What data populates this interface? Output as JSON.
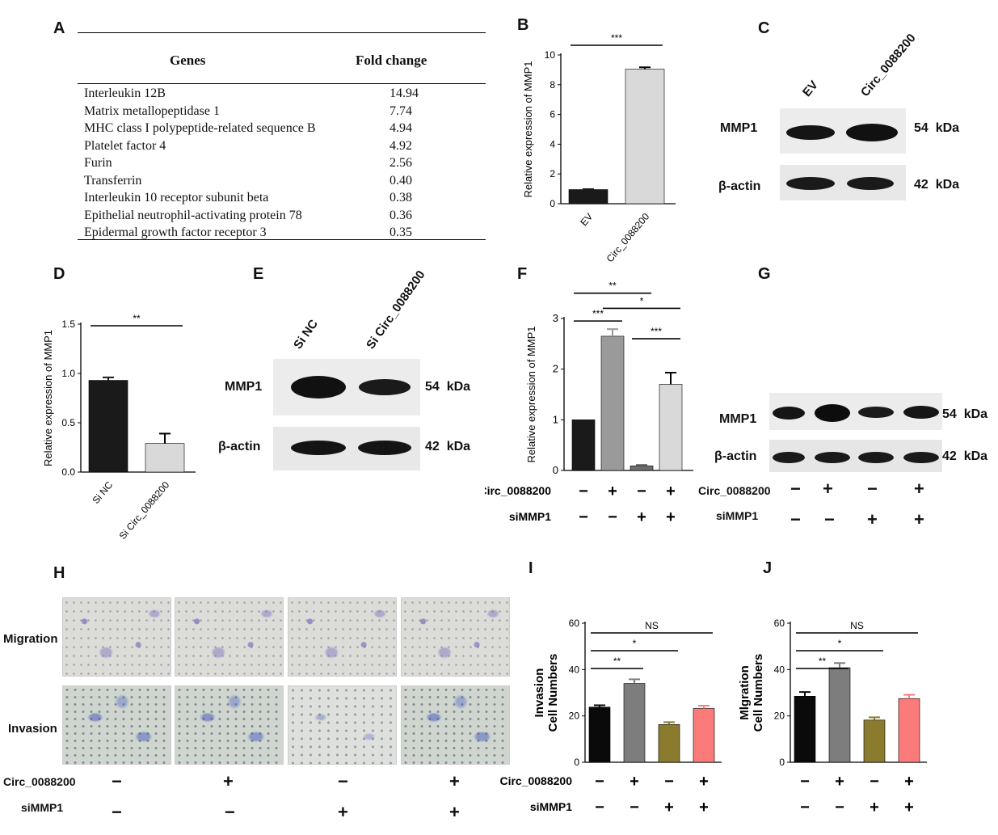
{
  "panels": {
    "A": "A",
    "B": "B",
    "C": "C",
    "D": "D",
    "E": "E",
    "F": "F",
    "G": "G",
    "H": "H",
    "I": "I",
    "J": "J"
  },
  "tableA": {
    "col_genes": "Genes",
    "col_fold": "Fold change",
    "rows": [
      {
        "gene": "Interleukin 12B",
        "fold": "14.94"
      },
      {
        "gene": "Matrix metallopeptidase 1",
        "fold": "7.74"
      },
      {
        "gene": "MHC class I polypeptide-related sequence B",
        "fold": "4.94"
      },
      {
        "gene": "Platelet factor 4",
        "fold": "4.92"
      },
      {
        "gene": "Furin",
        "fold": "2.56"
      },
      {
        "gene": "Transferrin",
        "fold": "0.40"
      },
      {
        "gene": "Interleukin 10 receptor subunit beta",
        "fold": "0.38"
      },
      {
        "gene": "Epithelial neutrophil-activating protein 78",
        "fold": "0.36"
      },
      {
        "gene": "Epidermal growth factor receptor 3",
        "fold": "0.35"
      }
    ]
  },
  "blots": {
    "C": {
      "lanes": [
        "EV",
        "Circ_0088200"
      ],
      "bands": [
        {
          "name": "MMP1",
          "kda": "54  kDa"
        },
        {
          "name": "β-actin",
          "kda": "42  kDa"
        }
      ]
    },
    "E": {
      "lanes": [
        "Si NC",
        "Si Circ_0088200"
      ],
      "bands": [
        {
          "name": "MMP1",
          "kda": "54  kDa"
        },
        {
          "name": "β-actin",
          "kda": "42  kDa"
        }
      ]
    },
    "G": {
      "bands": [
        {
          "name": "MMP1",
          "kda": "54  kDa"
        },
        {
          "name": "β-actin",
          "kda": "42  kDa"
        }
      ],
      "row1_label": "Circ_0088200",
      "row1": [
        "−",
        "+",
        "−",
        "+"
      ],
      "row2_label": "siMMP1",
      "row2": [
        "−",
        "−",
        "+",
        "+"
      ]
    }
  },
  "panelH": {
    "row_labels": [
      "Migration",
      "Invasion"
    ],
    "row1_label": "Circ_0088200",
    "row1": [
      "−",
      "+",
      "−",
      "+"
    ],
    "row2_label": "siMMP1",
    "row2": [
      "−",
      "−",
      "+",
      "+"
    ]
  },
  "chart_data": [
    {
      "panel": "B",
      "type": "bar",
      "categories": [
        "EV",
        "Circ_0088200"
      ],
      "values": [
        0.95,
        9.05
      ],
      "errors": [
        0.03,
        0.12
      ],
      "ylabel": "Relative expression of MMP1",
      "ylim": [
        0,
        10
      ],
      "yticks": [
        0,
        2,
        4,
        6,
        8,
        10
      ],
      "colors": [
        "#1a1a1a",
        "#d9d9d9"
      ],
      "significance": [
        {
          "a": 0,
          "b": 1,
          "label": "***"
        }
      ]
    },
    {
      "panel": "D",
      "type": "bar",
      "categories": [
        "Si NC",
        "Si Circ_0088200"
      ],
      "values": [
        0.93,
        0.29
      ],
      "errors": [
        0.03,
        0.1
      ],
      "ylabel": "Relative expression of MMP1",
      "ylim": [
        0,
        1.5
      ],
      "yticks": [
        "0.0",
        "0.5",
        "1.0",
        "1.5"
      ],
      "colors": [
        "#1a1a1a",
        "#d9d9d9"
      ],
      "significance": [
        {
          "a": 0,
          "b": 1,
          "label": "**"
        }
      ]
    },
    {
      "panel": "F",
      "type": "bar",
      "categories": [
        "1",
        "2",
        "3",
        "4"
      ],
      "values": [
        1.0,
        2.65,
        0.09,
        1.7
      ],
      "errors": [
        0.0,
        0.14,
        0.02,
        0.23
      ],
      "ylabel": "Relative expression of MMP1",
      "ylim": [
        0,
        3
      ],
      "yticks": [
        0,
        1,
        2,
        3
      ],
      "colors": [
        "#1a1a1a",
        "#9a9a9a",
        "#6e6e6e",
        "#d9d9d9"
      ],
      "row1_label": "Circ_0088200",
      "row1": [
        "−",
        "+",
        "−",
        "+"
      ],
      "row2_label": "siMMP1",
      "row2": [
        "−",
        "−",
        "+",
        "+"
      ],
      "significance": [
        {
          "a": 0,
          "b": 1,
          "label": "***"
        },
        {
          "a": 0,
          "b": 2,
          "label": "**"
        },
        {
          "a": 1,
          "b": 3,
          "label": "*"
        },
        {
          "a": 2,
          "b": 3,
          "label": "***"
        }
      ]
    },
    {
      "panel": "I",
      "type": "bar",
      "categories": [
        "1",
        "2",
        "3",
        "4"
      ],
      "values": [
        23.8,
        34,
        16.3,
        23.2
      ],
      "errors": [
        0.8,
        1.8,
        1.0,
        1.2
      ],
      "ylabel": "Invasion\nCell Numbers",
      "ylim": [
        0,
        60
      ],
      "yticks": [
        0,
        20,
        40,
        60
      ],
      "colors": [
        "#0a0a0a",
        "#7d7d7d",
        "#8a7b2e",
        "#fb7b7b"
      ],
      "row1_label": "Circ_0088200",
      "row1": [
        "−",
        "+",
        "−",
        "+"
      ],
      "row2_label": "siMMP1",
      "row2": [
        "−",
        "−",
        "+",
        "+"
      ],
      "significance": [
        {
          "a": 0,
          "b": 1,
          "label": "**"
        },
        {
          "a": 0,
          "b": 2,
          "label": "*"
        },
        {
          "a": 0,
          "b": 3,
          "label": "NS"
        }
      ]
    },
    {
      "panel": "J",
      "type": "bar",
      "categories": [
        "1",
        "2",
        "3",
        "4"
      ],
      "values": [
        28.5,
        40.8,
        18.2,
        27.5
      ],
      "errors": [
        1.8,
        2.0,
        1.2,
        1.6
      ],
      "ylabel": "Mlgration\nCell Numbers",
      "ylim": [
        0,
        60
      ],
      "yticks": [
        0,
        20,
        40,
        60
      ],
      "colors": [
        "#0a0a0a",
        "#7d7d7d",
        "#8a7b2e",
        "#fb7b7b"
      ],
      "row1": [
        "−",
        "+",
        "−",
        "+"
      ],
      "row2": [
        "−",
        "−",
        "+",
        "+"
      ],
      "significance": [
        {
          "a": 0,
          "b": 1,
          "label": "**"
        },
        {
          "a": 0,
          "b": 2,
          "label": "*"
        },
        {
          "a": 0,
          "b": 3,
          "label": "NS"
        }
      ]
    }
  ]
}
